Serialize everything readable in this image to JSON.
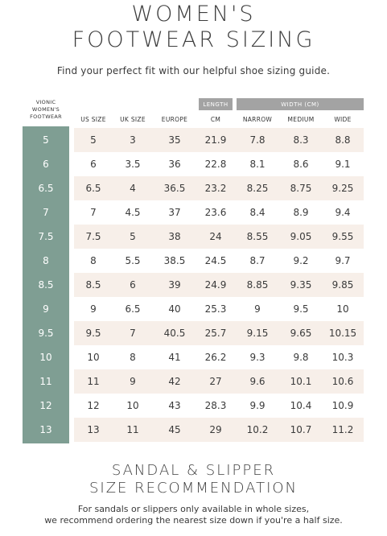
{
  "header": {
    "title_line1": "WOMEN'S",
    "title_line2": "FOOTWEAR SIZING",
    "subtitle": "Find your perfect fit with our helpful shoe sizing guide."
  },
  "table": {
    "group_length": "LENGTH",
    "group_width": "WIDTH (CM)",
    "vionic_header": [
      "VIONIC",
      "WOMEN'S",
      "FOOTWEAR"
    ],
    "columns": [
      "US SIZE",
      "UK SIZE",
      "EUROPE",
      "CM",
      "NARROW",
      "MEDIUM",
      "WIDE"
    ],
    "rows": [
      {
        "vionic": "5",
        "us": "5",
        "uk": "3",
        "eu": "35",
        "cm": "21.9",
        "narrow": "7.8",
        "medium": "8.3",
        "wide": "8.8"
      },
      {
        "vionic": "6",
        "us": "6",
        "uk": "3.5",
        "eu": "36",
        "cm": "22.8",
        "narrow": "8.1",
        "medium": "8.6",
        "wide": "9.1"
      },
      {
        "vionic": "6.5",
        "us": "6.5",
        "uk": "4",
        "eu": "36.5",
        "cm": "23.2",
        "narrow": "8.25",
        "medium": "8.75",
        "wide": "9.25"
      },
      {
        "vionic": "7",
        "us": "7",
        "uk": "4.5",
        "eu": "37",
        "cm": "23.6",
        "narrow": "8.4",
        "medium": "8.9",
        "wide": "9.4"
      },
      {
        "vionic": "7.5",
        "us": "7.5",
        "uk": "5",
        "eu": "38",
        "cm": "24",
        "narrow": "8.55",
        "medium": "9.05",
        "wide": "9.55"
      },
      {
        "vionic": "8",
        "us": "8",
        "uk": "5.5",
        "eu": "38.5",
        "cm": "24.5",
        "narrow": "8.7",
        "medium": "9.2",
        "wide": "9.7"
      },
      {
        "vionic": "8.5",
        "us": "8.5",
        "uk": "6",
        "eu": "39",
        "cm": "24.9",
        "narrow": "8.85",
        "medium": "9.35",
        "wide": "9.85"
      },
      {
        "vionic": "9",
        "us": "9",
        "uk": "6.5",
        "eu": "40",
        "cm": "25.3",
        "narrow": "9",
        "medium": "9.5",
        "wide": "10"
      },
      {
        "vionic": "9.5",
        "us": "9.5",
        "uk": "7",
        "eu": "40.5",
        "cm": "25.7",
        "narrow": "9.15",
        "medium": "9.65",
        "wide": "10.15"
      },
      {
        "vionic": "10",
        "us": "10",
        "uk": "8",
        "eu": "41",
        "cm": "26.2",
        "narrow": "9.3",
        "medium": "9.8",
        "wide": "10.3"
      },
      {
        "vionic": "11",
        "us": "11",
        "uk": "9",
        "eu": "42",
        "cm": "27",
        "narrow": "9.6",
        "medium": "10.1",
        "wide": "10.6"
      },
      {
        "vionic": "12",
        "us": "12",
        "uk": "10",
        "eu": "43",
        "cm": "28.3",
        "narrow": "9.9",
        "medium": "10.4",
        "wide": "10.9"
      },
      {
        "vionic": "13",
        "us": "13",
        "uk": "11",
        "eu": "45",
        "cm": "29",
        "narrow": "10.2",
        "medium": "10.7",
        "wide": "11.2"
      }
    ]
  },
  "sandal": {
    "title_line1": "SANDAL & SLIPPER",
    "title_line2": "SIZE RECOMMENDATION",
    "note_line1": "For sandals or slippers only available in whole sizes,",
    "note_line2": "we recommend ordering the nearest size down if you're a half size."
  },
  "colors": {
    "size_column": "#7f9e93",
    "row_shade": "#f7efe9",
    "group_header": "#a3a3a3"
  }
}
